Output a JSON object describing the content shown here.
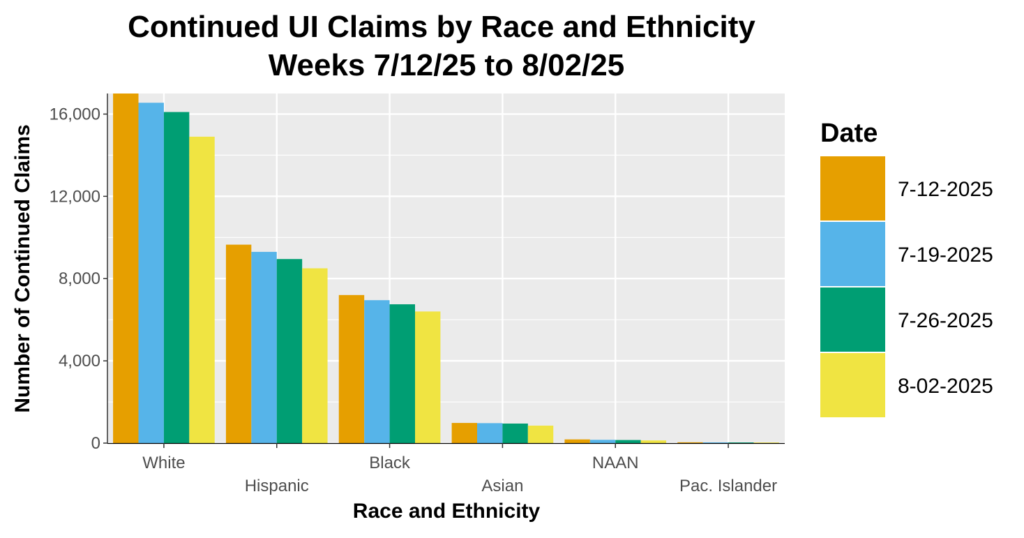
{
  "chart_data": {
    "type": "bar",
    "title": "Continued UI Claims by Race and Ethnicity",
    "subtitle": "Weeks 7/12/25 to 8/02/25",
    "xlabel": "Race and Ethnicity",
    "ylabel": "Number of Continued Claims",
    "ylim": [
      0,
      17000
    ],
    "yticks": [
      0,
      4000,
      8000,
      12000,
      16000
    ],
    "ytick_labels": [
      "0",
      "4,000",
      "8,000",
      "12,000",
      "16,000"
    ],
    "grid": true,
    "legend": {
      "title": "Date",
      "position": "right"
    },
    "categories": [
      "White",
      "Hispanic",
      "Black",
      "Asian",
      "NAAN",
      "Pac. Islander"
    ],
    "series": [
      {
        "name": "7-12-2025",
        "color": "#E69F00",
        "values": [
          17000,
          9650,
          7200,
          980,
          180,
          40
        ]
      },
      {
        "name": "7-19-2025",
        "color": "#56B4E9",
        "values": [
          16550,
          9300,
          6950,
          970,
          160,
          35
        ]
      },
      {
        "name": "7-26-2025",
        "color": "#009E73",
        "values": [
          16100,
          8950,
          6750,
          950,
          150,
          32
        ]
      },
      {
        "name": "8-02-2025",
        "color": "#F0E442",
        "values": [
          14900,
          8500,
          6400,
          850,
          130,
          30
        ]
      }
    ]
  }
}
